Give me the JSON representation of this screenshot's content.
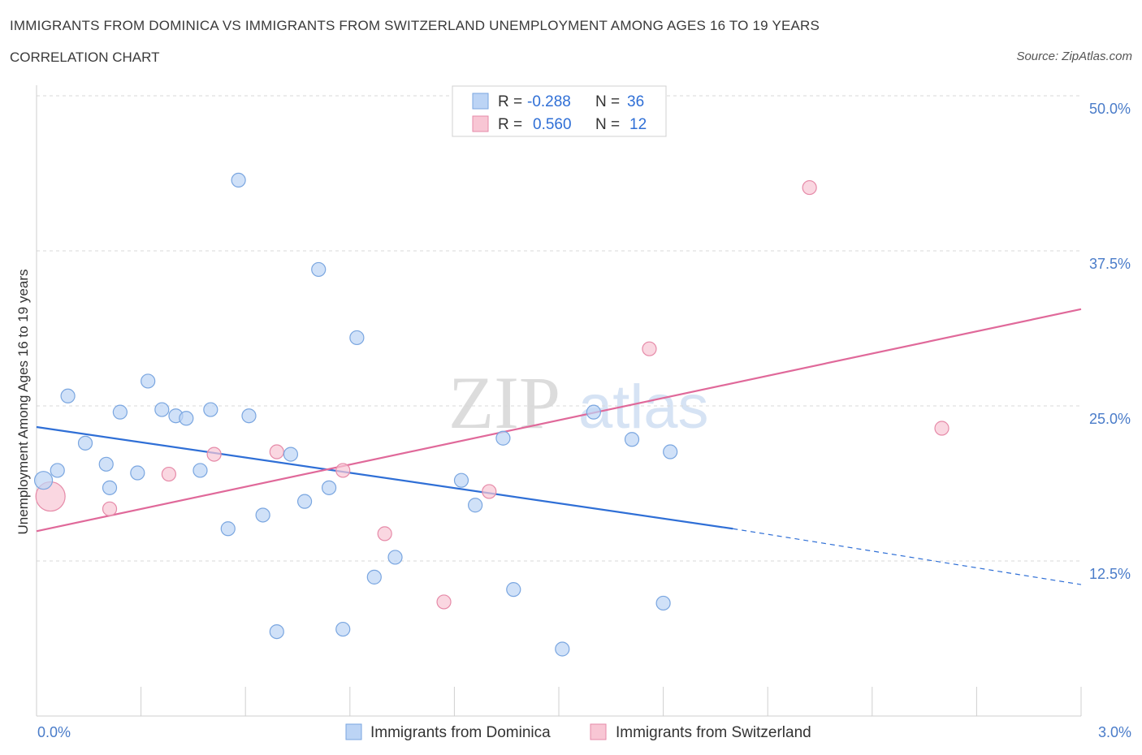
{
  "header": {
    "title": "IMMIGRANTS FROM DOMINICA VS IMMIGRANTS FROM SWITZERLAND UNEMPLOYMENT AMONG AGES 16 TO 19 YEARS",
    "subtitle": "CORRELATION CHART",
    "source": "Source: ZipAtlas.com"
  },
  "watermark": {
    "zip": "ZIP",
    "atlas": "atlas"
  },
  "legend_box": {
    "r_label": "R =",
    "n_label": "N =",
    "rows": [
      {
        "r": "-0.288",
        "n": "36"
      },
      {
        "r": "0.560",
        "n": "12"
      }
    ]
  },
  "colors": {
    "dominica_fill": "#bcd4f5",
    "dominica_stroke": "#7aa6e0",
    "dominica_line": "#2f6fd6",
    "switzerland_fill": "#f8c6d4",
    "switzerland_stroke": "#e68aa8",
    "switzerland_line": "#e0699a",
    "tick_label": "#4a7cc9",
    "grid": "#d8d8d8"
  },
  "chart_data": {
    "type": "scatter",
    "xlabel": "",
    "ylabel": "Unemployment Among Ages 16 to 19 years",
    "xlim": [
      0,
      3.0
    ],
    "ylim": [
      0,
      50
    ],
    "x_tick_labels": [
      "0.0%",
      "3.0%"
    ],
    "y_ticks": [
      12.5,
      25.0,
      37.5,
      50.0
    ],
    "y_tick_labels": [
      "12.5%",
      "25.0%",
      "37.5%",
      "50.0%"
    ],
    "grid": true,
    "series": [
      {
        "name": "Immigrants from Dominica",
        "points": [
          [
            0.02,
            19.0
          ],
          [
            0.06,
            19.8
          ],
          [
            0.09,
            25.8
          ],
          [
            0.14,
            22.0
          ],
          [
            0.2,
            20.3
          ],
          [
            0.21,
            18.4
          ],
          [
            0.24,
            24.5
          ],
          [
            0.29,
            19.6
          ],
          [
            0.32,
            27.0
          ],
          [
            0.36,
            24.7
          ],
          [
            0.4,
            24.2
          ],
          [
            0.43,
            24.0
          ],
          [
            0.47,
            19.8
          ],
          [
            0.5,
            24.7
          ],
          [
            0.55,
            15.1
          ],
          [
            0.58,
            43.2
          ],
          [
            0.61,
            24.2
          ],
          [
            0.65,
            16.2
          ],
          [
            0.69,
            6.8
          ],
          [
            0.73,
            21.1
          ],
          [
            0.77,
            17.3
          ],
          [
            0.81,
            36.0
          ],
          [
            0.84,
            18.4
          ],
          [
            0.88,
            7.0
          ],
          [
            0.92,
            30.5
          ],
          [
            0.97,
            11.2
          ],
          [
            1.03,
            12.8
          ],
          [
            1.22,
            19.0
          ],
          [
            1.26,
            17.0
          ],
          [
            1.34,
            22.4
          ],
          [
            1.37,
            10.2
          ],
          [
            1.51,
            5.4
          ],
          [
            1.6,
            24.5
          ],
          [
            1.71,
            22.3
          ],
          [
            1.8,
            9.1
          ],
          [
            1.82,
            21.3
          ]
        ],
        "trend": {
          "x": [
            0,
            2.0
          ],
          "y": [
            23.3,
            15.1
          ]
        },
        "trend_dashed": {
          "x": [
            2.0,
            3.0
          ],
          "y": [
            15.1,
            10.6
          ]
        }
      },
      {
        "name": "Immigrants from Switzerland",
        "points": [
          [
            0.04,
            17.7
          ],
          [
            0.21,
            16.7
          ],
          [
            0.38,
            19.5
          ],
          [
            0.51,
            21.1
          ],
          [
            0.69,
            21.3
          ],
          [
            0.88,
            19.8
          ],
          [
            1.0,
            14.7
          ],
          [
            1.17,
            9.2
          ],
          [
            1.3,
            18.1
          ],
          [
            1.76,
            29.6
          ],
          [
            2.22,
            42.6
          ],
          [
            2.6,
            23.2
          ]
        ],
        "trend": {
          "x": [
            0,
            3.0
          ],
          "y": [
            14.9,
            32.8
          ]
        }
      }
    ]
  }
}
